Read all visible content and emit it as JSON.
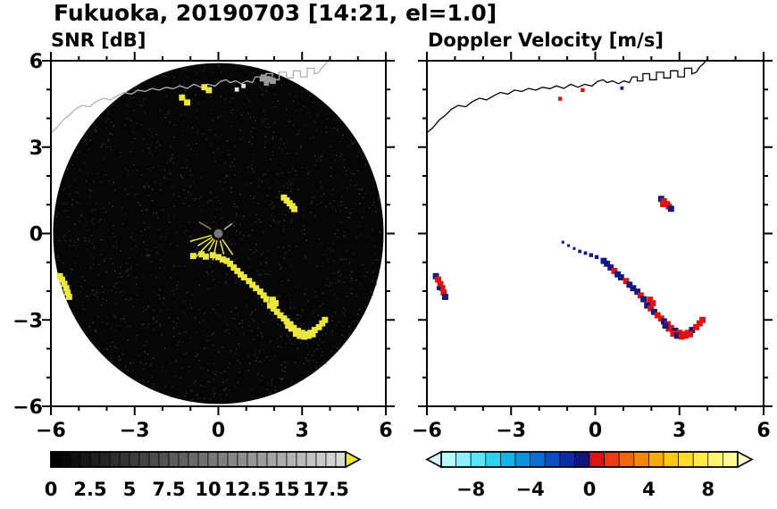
{
  "title": "Fukuoka, 20190703 [14:21, el=1.0]",
  "coastline": [
    [
      -6,
      3.5
    ],
    [
      -5.78,
      3.68
    ],
    [
      -5.55,
      3.95
    ],
    [
      -5.35,
      4.1
    ],
    [
      -5.12,
      4.32
    ],
    [
      -4.88,
      4.45
    ],
    [
      -4.62,
      4.4
    ],
    [
      -4.38,
      4.58
    ],
    [
      -4.12,
      4.7
    ],
    [
      -3.88,
      4.64
    ],
    [
      -3.62,
      4.78
    ],
    [
      -3.38,
      4.9
    ],
    [
      -3.12,
      4.84
    ],
    [
      -2.88,
      4.98
    ],
    [
      -2.62,
      4.93
    ],
    [
      -2.38,
      5.04
    ],
    [
      -2.12,
      4.98
    ],
    [
      -1.88,
      5.08
    ],
    [
      -1.62,
      5.03
    ],
    [
      -1.38,
      5.13
    ],
    [
      -1.12,
      5.04
    ],
    [
      -0.88,
      5.18
    ],
    [
      -0.62,
      5.08
    ],
    [
      -0.38,
      5.18
    ],
    [
      -0.12,
      5.12
    ],
    [
      0.08,
      5.28
    ],
    [
      0.28,
      5.34
    ],
    [
      0.42,
      5.24
    ],
    [
      0.62,
      5.3
    ],
    [
      0.82,
      5.2
    ],
    [
      1.02,
      5.3
    ],
    [
      1.22,
      5.24
    ],
    [
      1.32,
      5.44
    ],
    [
      1.5,
      5.44
    ],
    [
      1.5,
      5.3
    ],
    [
      1.7,
      5.3
    ],
    [
      1.7,
      5.55
    ],
    [
      1.94,
      5.55
    ],
    [
      1.94,
      5.34
    ],
    [
      2.18,
      5.34
    ],
    [
      2.18,
      5.6
    ],
    [
      2.44,
      5.6
    ],
    [
      2.44,
      5.4
    ],
    [
      2.68,
      5.4
    ],
    [
      2.68,
      5.65
    ],
    [
      2.94,
      5.65
    ],
    [
      2.94,
      5.44
    ],
    [
      3.18,
      5.44
    ],
    [
      3.18,
      5.74
    ],
    [
      3.44,
      5.74
    ],
    [
      3.44,
      5.54
    ],
    [
      3.6,
      5.6
    ],
    [
      3.72,
      5.78
    ],
    [
      3.86,
      5.9
    ],
    [
      3.96,
      6.02
    ]
  ],
  "chart_data": [
    {
      "type": "heatmap",
      "title": "SNR [dB]",
      "xlim": [
        -6,
        6
      ],
      "ylim": [
        -6,
        6
      ],
      "xticks": {
        "values": [
          -6,
          -3,
          0,
          3,
          6
        ],
        "labels": [
          "−6",
          "−3",
          "0",
          "3",
          "6"
        ]
      },
      "yticks": {
        "values": [
          -6,
          -3,
          0,
          3,
          6
        ],
        "labels": [
          "−6",
          "−3",
          "0",
          "3",
          "6"
        ]
      },
      "minor_tick_step": 1,
      "plot_bg": "#ffffff",
      "coast_color": "#b0b0b0",
      "radar_disk": {
        "cx": 0,
        "cy": 0,
        "radius": 5.92,
        "color": "#060606"
      },
      "center_dot": {
        "x": 0,
        "y": 0,
        "color": "#787878"
      },
      "spokes": [
        {
          "a": 195,
          "r0": 0.25,
          "r1": 1.05
        },
        {
          "a": 210,
          "r0": 0.25,
          "r1": 0.85
        },
        {
          "a": 225,
          "r0": 0.25,
          "r1": 1.2
        },
        {
          "a": 240,
          "r0": 0.25,
          "r1": 0.7
        },
        {
          "a": 258,
          "r0": 0.25,
          "r1": 0.95
        },
        {
          "a": 285,
          "r0": 0.25,
          "r1": 0.75
        },
        {
          "a": 305,
          "r0": 0.25,
          "r1": 0.9
        },
        {
          "a": 35,
          "r0": 0.25,
          "r1": 0.6,
          "c": "#b9b9b9"
        },
        {
          "a": 150,
          "r0": 0.3,
          "r1": 0.8,
          "c": "#8a8a42"
        }
      ],
      "colors": {
        "y": "#ece73e",
        "g": "#9b9b9b",
        "w": "#e6e6e6"
      },
      "default_color": "y",
      "points": [
        [
          -1.3,
          4.72
        ],
        [
          -1.12,
          4.55
        ],
        [
          -0.5,
          5.08
        ],
        [
          -0.34,
          4.98
        ],
        [
          1.62,
          5.42,
          "g"
        ],
        [
          1.78,
          5.36,
          "g"
        ],
        [
          1.95,
          5.3,
          "g"
        ],
        [
          1.72,
          5.22,
          "g",
          0.18
        ],
        [
          0.66,
          5.0,
          "w",
          0.15
        ],
        [
          0.9,
          5.12,
          "w",
          0.15
        ],
        [
          2.35,
          1.25
        ],
        [
          2.45,
          1.15
        ],
        [
          2.55,
          1.05
        ],
        [
          2.65,
          0.95
        ],
        [
          2.72,
          0.85
        ],
        [
          -5.68,
          -1.48
        ],
        [
          -5.6,
          -1.6
        ],
        [
          -5.52,
          -1.75
        ],
        [
          -5.45,
          -1.9
        ],
        [
          -5.4,
          -2.05
        ],
        [
          -5.35,
          -2.2
        ],
        [
          -0.9,
          -0.78
        ],
        [
          -0.6,
          -0.72
        ],
        [
          -0.45,
          -0.8
        ],
        [
          -0.2,
          -0.75
        ],
        [
          0.0,
          -0.82
        ],
        [
          0.15,
          -0.9
        ],
        [
          0.3,
          -0.95
        ],
        [
          0.42,
          -1.05
        ],
        [
          0.55,
          -1.18
        ],
        [
          0.68,
          -1.3
        ],
        [
          0.8,
          -1.42
        ],
        [
          0.92,
          -1.52
        ],
        [
          1.1,
          -1.65
        ],
        [
          1.22,
          -1.78
        ],
        [
          1.35,
          -1.9
        ],
        [
          1.5,
          -2.02
        ],
        [
          1.62,
          -2.15
        ],
        [
          1.72,
          -2.28
        ],
        [
          1.95,
          -2.3
        ],
        [
          2.05,
          -2.42
        ],
        [
          1.85,
          -2.5
        ],
        [
          1.98,
          -2.6
        ],
        [
          2.1,
          -2.72
        ],
        [
          2.22,
          -2.84
        ],
        [
          2.35,
          -2.95
        ],
        [
          2.45,
          -3.05
        ],
        [
          2.58,
          -3.15
        ],
        [
          2.7,
          -3.28
        ],
        [
          2.85,
          -3.38
        ],
        [
          3.0,
          -3.45
        ],
        [
          3.15,
          -3.5
        ],
        [
          3.3,
          -3.45
        ],
        [
          3.45,
          -3.35
        ],
        [
          3.6,
          -3.25
        ],
        [
          3.72,
          -3.12
        ],
        [
          3.82,
          -3.0
        ],
        [
          2.62,
          -3.3
        ],
        [
          2.78,
          -3.48
        ],
        [
          2.92,
          -3.55
        ],
        [
          3.08,
          -3.58
        ],
        [
          3.22,
          -3.55
        ],
        [
          2.5,
          -3.2
        ],
        [
          3.38,
          -3.5
        ]
      ],
      "colorbar": {
        "min": 0,
        "max": 18.75,
        "tick_values": [
          0,
          2.5,
          5,
          7.5,
          10,
          12.5,
          15,
          17.5
        ],
        "tick_labels": [
          "0",
          "2.5",
          "5",
          "7.5",
          "10",
          "12.5",
          "15",
          "17.5"
        ],
        "colors": [
          "#000000",
          "#070707",
          "#0f0f0f",
          "#161616",
          "#1e1e1e",
          "#252525",
          "#2d2d2d",
          "#343434",
          "#3c3c3c",
          "#434343",
          "#4b4b4b",
          "#525252",
          "#5a5a5a",
          "#616161",
          "#696969",
          "#707070",
          "#787878",
          "#7f7f7f",
          "#878787",
          "#8e8e8e",
          "#969696",
          "#9d9d9d",
          "#a5a5a5",
          "#acacac",
          "#b4b4b4",
          "#bbbbbb",
          "#c3c3c3",
          "#cacaca",
          "#d2d2d2",
          "#d9d9d9"
        ],
        "over": "#ece73e"
      }
    },
    {
      "type": "scatter",
      "title": "Doppler Velocity [m/s]",
      "xlim": [
        -6,
        6
      ],
      "ylim": [
        -6,
        6
      ],
      "xticks": {
        "values": [
          -6,
          -3,
          0,
          3,
          6
        ],
        "labels": [
          "−6",
          "−3",
          "0",
          "3",
          "6"
        ]
      },
      "yticks": {
        "values": [
          -6,
          -3,
          0,
          3,
          6
        ],
        "labels": [
          "−6",
          "−3",
          "0",
          "3",
          "6"
        ]
      },
      "minor_tick_step": 1,
      "plot_bg": "#ffffff",
      "coast_color": "#000000",
      "colors": {
        "r": "#dc1414",
        "b": "#13197d"
      },
      "default_color": "r",
      "points": [
        [
          -1.25,
          4.68,
          "r",
          0.14
        ],
        [
          -0.45,
          4.98,
          "r",
          0.14
        ],
        [
          0.95,
          5.05,
          "b",
          0.12
        ],
        [
          2.35,
          1.2,
          "b"
        ],
        [
          2.45,
          1.12,
          "r"
        ],
        [
          2.55,
          1.02,
          "r"
        ],
        [
          2.42,
          1.02,
          "r"
        ],
        [
          2.62,
          0.94,
          "r"
        ],
        [
          2.7,
          0.86,
          "b"
        ],
        [
          -5.68,
          -1.48,
          "b"
        ],
        [
          -5.6,
          -1.6,
          "r"
        ],
        [
          -5.52,
          -1.75,
          "r"
        ],
        [
          -5.45,
          -1.9,
          "r"
        ],
        [
          -5.4,
          -2.05,
          "r"
        ],
        [
          -5.35,
          -2.2,
          "b"
        ],
        [
          -5.58,
          -1.9,
          "b",
          0.14
        ],
        [
          -1.15,
          -0.3,
          "b",
          0.1
        ],
        [
          -0.95,
          -0.42,
          "b",
          0.1
        ],
        [
          -0.75,
          -0.52,
          "b",
          0.1
        ],
        [
          -0.55,
          -0.62,
          "b",
          0.12
        ],
        [
          -0.35,
          -0.68,
          "b",
          0.12
        ],
        [
          -0.15,
          -0.75,
          "b",
          0.14
        ],
        [
          0.05,
          -0.82,
          "b",
          0.14
        ],
        [
          0.3,
          -0.95,
          "b"
        ],
        [
          0.42,
          -1.05,
          "b"
        ],
        [
          0.55,
          -1.18,
          "b"
        ],
        [
          0.68,
          -1.3,
          "r"
        ],
        [
          0.8,
          -1.42,
          "b"
        ],
        [
          0.92,
          -1.52,
          "b"
        ],
        [
          1.1,
          -1.65,
          "r"
        ],
        [
          1.22,
          -1.78,
          "b"
        ],
        [
          1.35,
          -1.9,
          "b"
        ],
        [
          1.5,
          -2.02,
          "b"
        ],
        [
          1.62,
          -2.15,
          "r"
        ],
        [
          1.72,
          -2.28,
          "b"
        ],
        [
          1.95,
          -2.3,
          "r"
        ],
        [
          2.05,
          -2.42,
          "r"
        ],
        [
          1.85,
          -2.5,
          "b"
        ],
        [
          1.98,
          -2.6,
          "r"
        ],
        [
          2.1,
          -2.72,
          "b"
        ],
        [
          2.22,
          -2.84,
          "r"
        ],
        [
          2.35,
          -2.95,
          "r"
        ],
        [
          2.45,
          -3.05,
          "b"
        ],
        [
          2.58,
          -3.15,
          "r"
        ],
        [
          2.7,
          -3.28,
          "r"
        ],
        [
          2.85,
          -3.38,
          "b"
        ],
        [
          3.0,
          -3.45,
          "r"
        ],
        [
          3.15,
          -3.5,
          "r"
        ],
        [
          3.3,
          -3.45,
          "r"
        ],
        [
          3.45,
          -3.35,
          "b"
        ],
        [
          3.6,
          -3.25,
          "r"
        ],
        [
          3.72,
          -3.12,
          "r"
        ],
        [
          3.82,
          -3.0,
          "r"
        ],
        [
          2.62,
          -3.3,
          "r"
        ],
        [
          2.78,
          -3.48,
          "r"
        ],
        [
          2.92,
          -3.55,
          "b"
        ],
        [
          3.08,
          -3.58,
          "r"
        ],
        [
          3.22,
          -3.55,
          "r"
        ],
        [
          2.5,
          -3.2,
          "b"
        ],
        [
          3.38,
          -3.5,
          "r"
        ]
      ],
      "colorbar": {
        "min": -10,
        "max": 10,
        "tick_values": [
          -8,
          -4,
          0,
          4,
          8
        ],
        "tick_labels": [
          "−8",
          "−4",
          "0",
          "4",
          "8"
        ],
        "colors": [
          "#b4faff",
          "#8cf0fa",
          "#5ce4f5",
          "#30d2f0",
          "#14b4e6",
          "#0a92dc",
          "#0a6ed2",
          "#0b4cc0",
          "#0c2ca6",
          "#101678",
          "#dc1414",
          "#e63c10",
          "#f0640c",
          "#f5860a",
          "#faa80c",
          "#ffc814",
          "#ffdc28",
          "#ffeb46",
          "#fff46e",
          "#fdfa96"
        ],
        "under": "#d2ffff",
        "over": "#ffffc8"
      }
    }
  ]
}
